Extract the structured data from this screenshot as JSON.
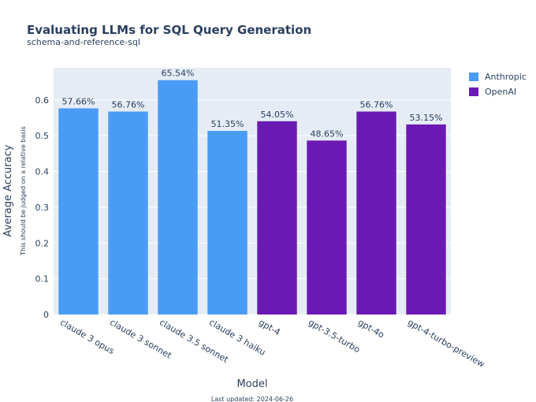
{
  "chart_data": {
    "type": "bar",
    "title": "Evaluating LLMs for SQL Query Generation",
    "subtitle": "schema-and-reference-sql",
    "xlabel": "Model",
    "ylabel": "Average Accuracy",
    "ylabel_note": "This should be judged on a relative basis",
    "footer": "Last updated: 2024-06-26",
    "ylim": [
      0,
      0.69
    ],
    "yticks": [
      0,
      0.1,
      0.2,
      0.3,
      0.4,
      0.5,
      0.6
    ],
    "ytick_labels": [
      "0",
      "0.1",
      "0.2",
      "0.3",
      "0.4",
      "0.5",
      "0.6"
    ],
    "grid": true,
    "legend_position": "top-right",
    "categories": [
      "claude 3 opus",
      "claude 3 sonnet",
      "claude 3.5 sonnet",
      "claude 3 haiku",
      "gpt-4",
      "gpt-3.5-turbo",
      "gpt-4o",
      "gpt-4-turbo-preview"
    ],
    "values": [
      0.5766,
      0.5676,
      0.6554,
      0.5135,
      0.5405,
      0.4865,
      0.5676,
      0.5315
    ],
    "data_labels": [
      "57.66%",
      "56.76%",
      "65.54%",
      "51.35%",
      "54.05%",
      "48.65%",
      "56.76%",
      "53.15%"
    ],
    "groups": [
      "Anthropic",
      "Anthropic",
      "Anthropic",
      "Anthropic",
      "OpenAI",
      "OpenAI",
      "OpenAI",
      "OpenAI"
    ],
    "series": [
      {
        "name": "Anthropic",
        "color": "#4a9bf5"
      },
      {
        "name": "OpenAI",
        "color": "#6a1ab2"
      }
    ]
  }
}
